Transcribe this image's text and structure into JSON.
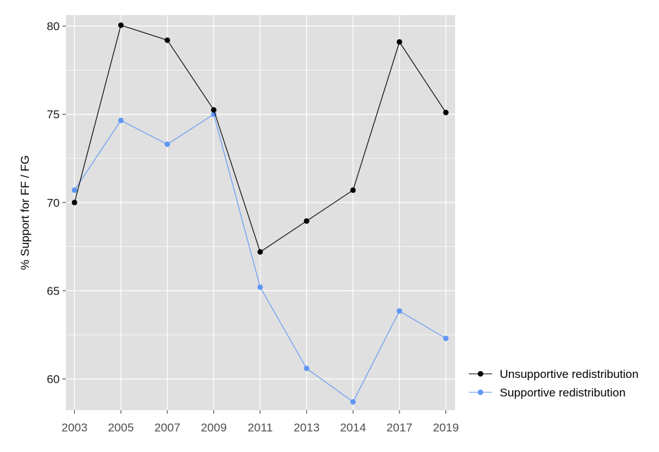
{
  "chart_data": {
    "type": "line",
    "title": "",
    "xlabel": "",
    "ylabel": "% Support for FF / FG",
    "categories": [
      "2003",
      "2005",
      "2007",
      "2009",
      "2011",
      "2013",
      "2014",
      "2017",
      "2019"
    ],
    "ylim": [
      58.3,
      80.6
    ],
    "yticks": [
      60,
      65,
      70,
      75,
      80
    ],
    "grid": true,
    "legend_position": "right",
    "series": [
      {
        "name": "Unsupportive redistribution",
        "color": "#000000",
        "values": [
          70.0,
          80.05,
          79.2,
          75.25,
          67.2,
          68.95,
          70.7,
          79.1,
          75.1
        ]
      },
      {
        "name": "Supportive redistribution",
        "color": "#5f97f5",
        "values": [
          70.7,
          74.65,
          73.3,
          75.0,
          65.2,
          60.6,
          58.7,
          63.85,
          62.3
        ]
      }
    ],
    "panel_background": "#e0e0e0",
    "grid_color": "#ffffff"
  }
}
